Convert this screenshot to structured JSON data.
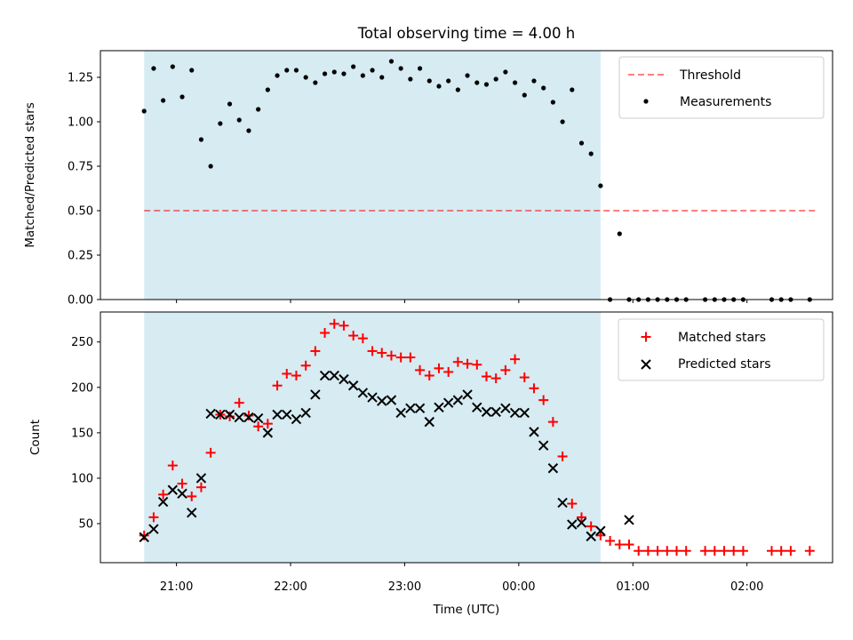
{
  "chart_data": {
    "type": "scatter",
    "title": "Total observing time = 4.00 h",
    "xlabel": "Time (UTC)",
    "x_ticks": [
      "21:00",
      "22:00",
      "23:00",
      "00:00",
      "01:00",
      "02:00"
    ],
    "observing_window": {
      "start": "20:43",
      "end": "00:43"
    },
    "colors": {
      "window_fill": "#add8e6",
      "threshold": "#ff0000",
      "measurements": "#000000",
      "matched": "#ff0000",
      "predicted": "#000000"
    },
    "panels": [
      {
        "ylabel": "Matched/Predicted stars",
        "ylim": [
          0,
          1.4
        ],
        "yticks": [
          "0.00",
          "0.25",
          "0.50",
          "0.75",
          "1.00",
          "1.25"
        ],
        "legend_position": "upper right",
        "threshold": {
          "name": "Threshold",
          "value": 0.5,
          "x_range": [
            "20:43",
            "02:37"
          ]
        },
        "series": [
          {
            "name": "Measurements",
            "marker": "dot",
            "x": [
              "20:43",
              "20:48",
              "20:53",
              "20:58",
              "21:03",
              "21:08",
              "21:13",
              "21:18",
              "21:23",
              "21:28",
              "21:33",
              "21:38",
              "21:43",
              "21:48",
              "21:53",
              "21:58",
              "22:03",
              "22:08",
              "22:13",
              "22:18",
              "22:23",
              "22:28",
              "22:33",
              "22:38",
              "22:43",
              "22:48",
              "22:53",
              "22:58",
              "23:03",
              "23:08",
              "23:13",
              "23:18",
              "23:23",
              "23:28",
              "23:33",
              "23:38",
              "23:43",
              "23:48",
              "23:53",
              "23:58",
              "00:03",
              "00:08",
              "00:13",
              "00:18",
              "00:23",
              "00:28",
              "00:33",
              "00:38",
              "00:43",
              "00:48",
              "00:53",
              "00:58",
              "01:03",
              "01:08",
              "01:13",
              "01:18",
              "01:23",
              "01:28",
              "01:38",
              "01:43",
              "01:48",
              "01:53",
              "01:58",
              "02:13",
              "02:18",
              "02:23",
              "02:33"
            ],
            "y": [
              1.06,
              1.3,
              1.12,
              1.31,
              1.14,
              1.29,
              0.9,
              0.75,
              0.99,
              1.1,
              1.01,
              0.95,
              1.07,
              1.18,
              1.26,
              1.29,
              1.29,
              1.25,
              1.22,
              1.27,
              1.28,
              1.27,
              1.31,
              1.26,
              1.29,
              1.25,
              1.34,
              1.3,
              1.24,
              1.3,
              1.23,
              1.2,
              1.23,
              1.18,
              1.26,
              1.22,
              1.21,
              1.24,
              1.28,
              1.22,
              1.15,
              1.23,
              1.19,
              1.11,
              1.0,
              1.18,
              0.88,
              0.82,
              0.64,
              0.0,
              0.37,
              0.0,
              0.0,
              0.0,
              0.0,
              0.0,
              0.0,
              0.0,
              0.0,
              0.0,
              0.0,
              0.0,
              0.0,
              0.0,
              0.0,
              0.0,
              0.0
            ]
          }
        ]
      },
      {
        "ylabel": "Count",
        "ylim": [
          7,
          283
        ],
        "yticks": [
          "50",
          "100",
          "150",
          "200",
          "250"
        ],
        "legend_position": "upper right",
        "series": [
          {
            "name": "Matched stars",
            "marker": "plus",
            "x": [
              "20:43",
              "20:48",
              "20:53",
              "20:58",
              "21:03",
              "21:08",
              "21:13",
              "21:18",
              "21:23",
              "21:28",
              "21:33",
              "21:38",
              "21:43",
              "21:48",
              "21:53",
              "21:58",
              "22:03",
              "22:08",
              "22:13",
              "22:18",
              "22:23",
              "22:28",
              "22:33",
              "22:38",
              "22:43",
              "22:48",
              "22:53",
              "22:58",
              "23:03",
              "23:08",
              "23:13",
              "23:18",
              "23:23",
              "23:28",
              "23:33",
              "23:38",
              "23:43",
              "23:48",
              "23:53",
              "23:58",
              "00:03",
              "00:08",
              "00:13",
              "00:18",
              "00:23",
              "00:28",
              "00:33",
              "00:38",
              "00:43",
              "00:48",
              "00:53",
              "00:58",
              "01:03",
              "01:08",
              "01:13",
              "01:18",
              "01:23",
              "01:28",
              "01:38",
              "01:43",
              "01:48",
              "01:53",
              "01:58",
              "02:13",
              "02:18",
              "02:23",
              "02:33"
            ],
            "y": [
              37,
              57,
              82,
              114,
              94,
              80,
              90,
              128,
              170,
              168,
              183,
              169,
              157,
              160,
              202,
              215,
              213,
              224,
              240,
              260,
              270,
              268,
              257,
              254,
              240,
              238,
              235,
              233,
              233,
              219,
              213,
              221,
              217,
              228,
              226,
              225,
              212,
              210,
              219,
              231,
              211,
              199,
              186,
              162,
              124,
              72,
              57,
              47,
              37,
              31,
              27,
              27,
              20,
              20,
              20,
              20,
              20,
              20,
              20,
              20,
              20,
              20,
              20,
              20,
              20,
              20,
              20
            ]
          },
          {
            "name": "Predicted stars",
            "marker": "x",
            "x": [
              "20:43",
              "20:48",
              "20:53",
              "20:58",
              "21:03",
              "21:08",
              "21:13",
              "21:18",
              "21:23",
              "21:28",
              "21:33",
              "21:38",
              "21:43",
              "21:48",
              "21:53",
              "21:58",
              "22:03",
              "22:08",
              "22:13",
              "22:18",
              "22:23",
              "22:28",
              "22:33",
              "22:38",
              "22:43",
              "22:48",
              "22:53",
              "22:58",
              "23:03",
              "23:08",
              "23:13",
              "23:18",
              "23:23",
              "23:28",
              "23:33",
              "23:38",
              "23:43",
              "23:48",
              "23:53",
              "23:58",
              "00:03",
              "00:08",
              "00:13",
              "00:18",
              "00:23",
              "00:28",
              "00:33",
              "00:38",
              "00:43",
              "00:58"
            ],
            "y": [
              35,
              44,
              74,
              87,
              83,
              62,
              100,
              171,
              170,
              170,
              167,
              167,
              166,
              150,
              170,
              170,
              165,
              172,
              192,
              213,
              213,
              209,
              202,
              194,
              189,
              185,
              186,
              172,
              177,
              177,
              162,
              178,
              183,
              186,
              192,
              178,
              173,
              173,
              177,
              172,
              172,
              151,
              136,
              111,
              73,
              49,
              51,
              36,
              42,
              54
            ]
          }
        ]
      }
    ]
  }
}
